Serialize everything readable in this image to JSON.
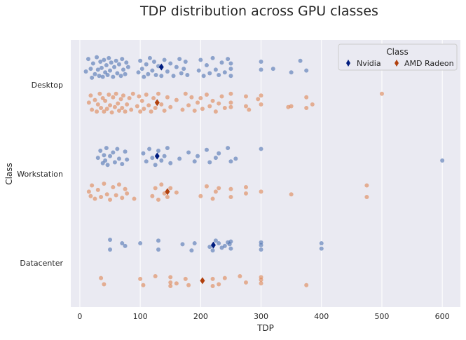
{
  "chart_data": {
    "type": "scatter",
    "title": "TDP distribution across GPU classes",
    "xlabel": "TDP",
    "ylabel": "Class",
    "xlim": [
      -15,
      630
    ],
    "x_ticks": [
      0,
      100,
      200,
      300,
      400,
      500,
      600
    ],
    "x_tick_labels": [
      "0",
      "100",
      "200",
      "300",
      "400",
      "500",
      "600"
    ],
    "categories": [
      "Desktop",
      "Workstation",
      "Datacenter"
    ],
    "grid": true,
    "legend": {
      "title": "Class",
      "position": "top-right",
      "columns": 2
    },
    "series": [
      {
        "name": "Nvidia",
        "color": "#4c72b0",
        "mean_color": "#001c7f",
        "offset": -0.2,
        "mean_values": [
          135,
          128,
          221
        ],
        "points": [
          [
            10,
            0.05
          ],
          [
            14,
            -0.09
          ],
          [
            18,
            0.02
          ],
          [
            20,
            0.12
          ],
          [
            22,
            -0.04
          ],
          [
            25,
            0.08
          ],
          [
            28,
            -0.11
          ],
          [
            30,
            0.03
          ],
          [
            32,
            0.1
          ],
          [
            34,
            -0.06
          ],
          [
            36,
            0.01
          ],
          [
            38,
            0.11
          ],
          [
            40,
            -0.08
          ],
          [
            42,
            0.06
          ],
          [
            44,
            -0.02
          ],
          [
            46,
            0.09
          ],
          [
            48,
            -0.1
          ],
          [
            50,
            0.04
          ],
          [
            52,
            -0.05
          ],
          [
            55,
            0.11
          ],
          [
            57,
            0.0
          ],
          [
            60,
            -0.07
          ],
          [
            62,
            0.07
          ],
          [
            65,
            -0.03
          ],
          [
            68,
            0.1
          ],
          [
            70,
            -0.09
          ],
          [
            72,
            0.03
          ],
          [
            75,
            0.08
          ],
          [
            77,
            -0.05
          ],
          [
            80,
            0.0
          ],
          [
            97,
            0.06
          ],
          [
            100,
            -0.07
          ],
          [
            103,
            0.02
          ],
          [
            106,
            0.11
          ],
          [
            110,
            -0.03
          ],
          [
            113,
            0.08
          ],
          [
            116,
            -0.1
          ],
          [
            120,
            0.04
          ],
          [
            123,
            -0.06
          ],
          [
            126,
            0.09
          ],
          [
            130,
            -0.01
          ],
          [
            135,
            0.1
          ],
          [
            140,
            -0.08
          ],
          [
            145,
            0.05
          ],
          [
            150,
            -0.04
          ],
          [
            155,
            0.1
          ],
          [
            160,
            0.0
          ],
          [
            165,
            -0.09
          ],
          [
            168,
            0.07
          ],
          [
            172,
            0.02
          ],
          [
            175,
            -0.06
          ],
          [
            178,
            0.09
          ],
          [
            197,
            0.04
          ],
          [
            200,
            -0.08
          ],
          [
            205,
            0.1
          ],
          [
            210,
            -0.02
          ],
          [
            215,
            0.07
          ],
          [
            220,
            -0.1
          ],
          [
            225,
            0.03
          ],
          [
            230,
            0.09
          ],
          [
            235,
            -0.05
          ],
          [
            240,
            0.06
          ],
          [
            245,
            -0.09
          ],
          [
            250,
            0.02
          ],
          [
            250,
            0.1
          ],
          [
            250,
            -0.04
          ],
          [
            300,
            0.03
          ],
          [
            300,
            -0.06
          ],
          [
            320,
            0.02
          ],
          [
            350,
            0.06
          ],
          [
            365,
            -0.07
          ],
          [
            375,
            0.04
          ]
        ]
      },
      {
        "name": "AMD Radeon",
        "color": "#dd8452",
        "mean_color": "#b1400d",
        "offset": 0.2,
        "mean_values": [
          128,
          145,
          203
        ],
        "points": [
          [
            15,
            0.0
          ],
          [
            18,
            -0.08
          ],
          [
            20,
            0.08
          ],
          [
            25,
            -0.03
          ],
          [
            28,
            0.1
          ],
          [
            30,
            0.02
          ],
          [
            33,
            -0.1
          ],
          [
            35,
            0.06
          ],
          [
            38,
            -0.05
          ],
          [
            40,
            0.1
          ],
          [
            42,
            -0.02
          ],
          [
            45,
            0.07
          ],
          [
            48,
            -0.09
          ],
          [
            50,
            0.03
          ],
          [
            53,
            0.11
          ],
          [
            55,
            -0.06
          ],
          [
            58,
            0.05
          ],
          [
            60,
            -0.1
          ],
          [
            63,
            0.01
          ],
          [
            65,
            0.09
          ],
          [
            68,
            -0.04
          ],
          [
            70,
            0.06
          ],
          [
            72,
            -0.08
          ],
          [
            75,
            0.1
          ],
          [
            78,
            0.02
          ],
          [
            82,
            -0.05
          ],
          [
            85,
            0.08
          ],
          [
            88,
            -0.1
          ],
          [
            95,
            0.04
          ],
          [
            98,
            -0.07
          ],
          [
            100,
            0.1
          ],
          [
            103,
            -0.02
          ],
          [
            106,
            0.07
          ],
          [
            110,
            -0.09
          ],
          [
            114,
            0.03
          ],
          [
            118,
            0.1
          ],
          [
            122,
            -0.05
          ],
          [
            125,
            0.06
          ],
          [
            130,
            -0.1
          ],
          [
            135,
            0.02
          ],
          [
            140,
            0.09
          ],
          [
            145,
            -0.06
          ],
          [
            150,
            0.05
          ],
          [
            160,
            -0.03
          ],
          [
            170,
            0.08
          ],
          [
            175,
            -0.1
          ],
          [
            180,
            0.03
          ],
          [
            185,
            -0.06
          ],
          [
            190,
            0.09
          ],
          [
            195,
            0.0
          ],
          [
            200,
            -0.05
          ],
          [
            203,
            0.07
          ],
          [
            210,
            -0.09
          ],
          [
            215,
            0.04
          ],
          [
            220,
            -0.02
          ],
          [
            225,
            0.1
          ],
          [
            230,
            0.01
          ],
          [
            235,
            -0.07
          ],
          [
            240,
            0.06
          ],
          [
            250,
            -0.1
          ],
          [
            250,
            0.05
          ],
          [
            250,
            0.0
          ],
          [
            275,
            -0.07
          ],
          [
            275,
            0.04
          ],
          [
            280,
            0.08
          ],
          [
            295,
            -0.04
          ],
          [
            300,
            0.02
          ],
          [
            300,
            -0.08
          ],
          [
            345,
            0.05
          ],
          [
            350,
            0.04
          ],
          [
            375,
            -0.06
          ],
          [
            375,
            0.06
          ],
          [
            385,
            0.02
          ],
          [
            500,
            -0.1
          ]
        ]
      }
    ]
  }
}
